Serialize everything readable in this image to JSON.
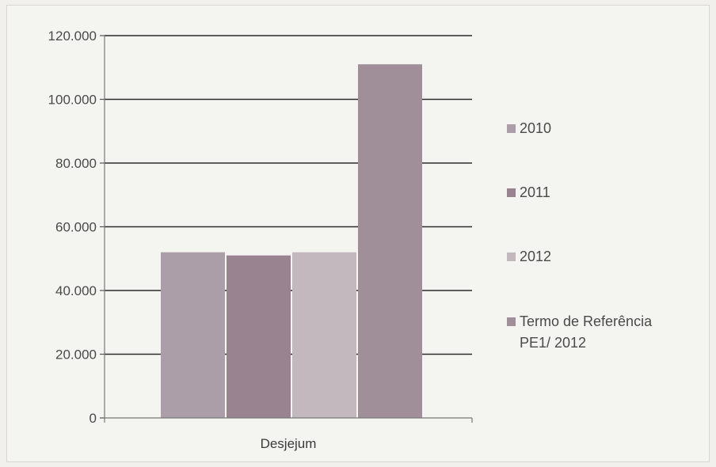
{
  "chart_data": {
    "type": "bar",
    "categories": [
      "Desjejum"
    ],
    "series": [
      {
        "name": "2010",
        "values": [
          52000
        ],
        "color": "#ab9ea8"
      },
      {
        "name": "2011",
        "values": [
          51000
        ],
        "color": "#9a8390"
      },
      {
        "name": "2012",
        "values": [
          52000
        ],
        "color": "#c3b8bd"
      },
      {
        "name": "Termo de Referência PE1/ 2012",
        "values": [
          111000
        ],
        "color": "#a08e99"
      }
    ],
    "legend_lines": [
      [
        "2010"
      ],
      [
        "2011"
      ],
      [
        "2012"
      ],
      [
        "Termo de Referência",
        "PE1/ 2012"
      ]
    ],
    "ylim": [
      0,
      120000
    ],
    "yticks": [
      0,
      20000,
      40000,
      60000,
      80000,
      100000,
      120000
    ],
    "ytick_labels": [
      "0",
      "20.000",
      "40.000",
      "60.000",
      "80.000",
      "100.000",
      "120.000"
    ],
    "grid": true,
    "legend_position": "right"
  }
}
